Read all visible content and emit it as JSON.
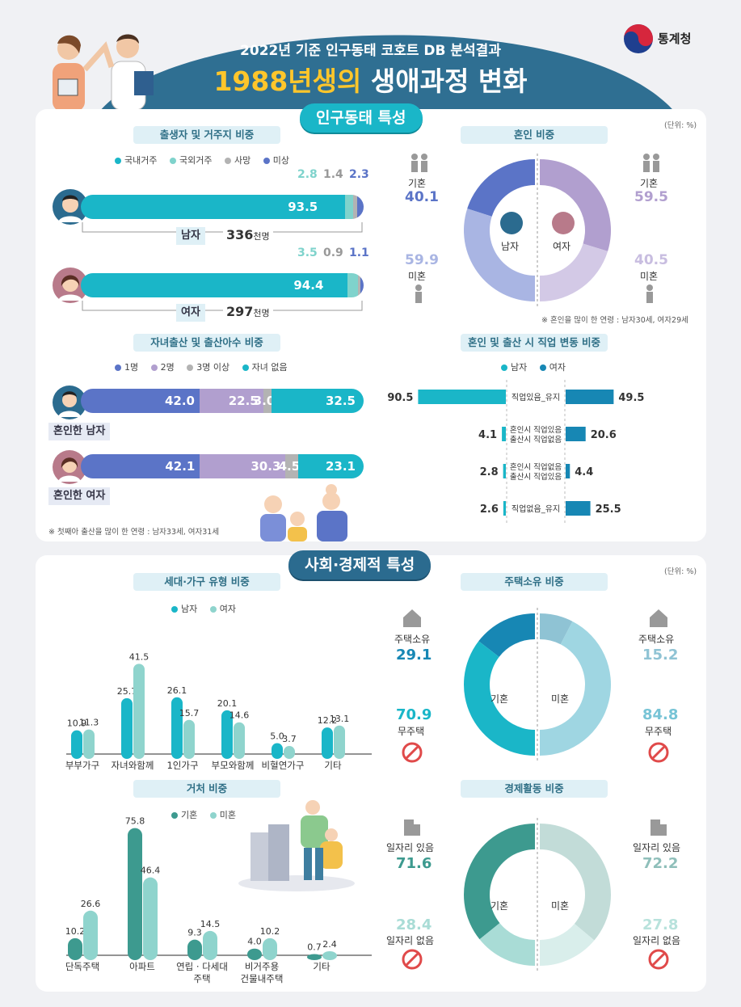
{
  "header": {
    "subtitle": "2022년 기준 인구동태 코호트 DB 분석결과",
    "title_highlight": "1988년생의",
    "title_rest": "생애과정 변화",
    "logo_text": "통계청"
  },
  "sections": {
    "s1": "인구동태 특성",
    "s2": "사회·경제적 특성"
  },
  "units": {
    "u1": "(단위: %)",
    "u2": "(단위: %)"
  },
  "colors": {
    "teal": "#1ab6c8",
    "mint": "#7fd3cc",
    "gray": "#b3b3b3",
    "navy": "#5b74c7",
    "purple": "#b19fcf",
    "darkteal": "#3d9a8f",
    "lightteal": "#8fd4cd",
    "blue": "#1787b4",
    "lightblue": "#9fd6e2"
  },
  "birth": {
    "title": "출생자 및 거주지 비중",
    "legend": [
      "국내거주",
      "국외거주",
      "사망",
      "미상"
    ],
    "male": {
      "label": "남자",
      "count": "336",
      "count_unit": "천명",
      "values": [
        93.5,
        2.8,
        1.4,
        2.3
      ],
      "main_label": "93.5",
      "top_labels": [
        "2.8",
        "1.4",
        "2.3"
      ]
    },
    "female": {
      "label": "여자",
      "count": "297",
      "count_unit": "천명",
      "values": [
        94.4,
        3.5,
        0.9,
        1.1
      ],
      "main_label": "94.4",
      "top_labels": [
        "3.5",
        "0.9",
        "1.1"
      ]
    }
  },
  "marriage": {
    "title": "혼인 비중",
    "male": {
      "label": "남자",
      "married_label": "기혼",
      "married": 40.1,
      "single_label": "미혼",
      "single": 59.9
    },
    "female": {
      "label": "여자",
      "married_label": "기혼",
      "married": 59.5,
      "single_label": "미혼",
      "single": 40.5
    },
    "note": "※ 혼인을 많이 한 연령 : 남자30세, 여자29세"
  },
  "children": {
    "title": "자녀출산 및 출산아수 비중",
    "legend": [
      "1명",
      "2명",
      "3명 이상",
      "자녀 없음"
    ],
    "male": {
      "label": "혼인한 남자",
      "values": [
        42.0,
        22.5,
        3.0,
        32.5
      ],
      "labels": [
        "42.0",
        "22.5",
        "3.0",
        "32.5"
      ]
    },
    "female": {
      "label": "혼인한 여자",
      "values": [
        42.1,
        30.3,
        4.5,
        23.1
      ],
      "labels": [
        "42.1",
        "30.3",
        "4.5",
        "23.1"
      ]
    },
    "note": "※ 첫째아 출산을 많이 한 연령 : 남자33세, 여자31세"
  },
  "job": {
    "title": "혼인 및 출산 시 직업 변동 비중",
    "legend": [
      "남자",
      "여자"
    ],
    "rows": [
      {
        "cat": "직업있음_유지",
        "cat2": "",
        "male": 90.5,
        "female": 49.5
      },
      {
        "cat": "혼인시 직업있음",
        "cat2": "출산시 직업없음",
        "male": 4.1,
        "female": 20.6
      },
      {
        "cat": "혼인시 직업없음",
        "cat2": "출산시 직업있음",
        "male": 2.8,
        "female": 4.4
      },
      {
        "cat": "직업없음_유지",
        "cat2": "",
        "male": 2.6,
        "female": 25.5
      }
    ]
  },
  "chart_data": [
    {
      "type": "bar",
      "title": "세대·가구 유형 비중",
      "categories": [
        "부부가구",
        "자녀와함께",
        "1인가구",
        "부모와함께",
        "비혈연가구",
        "기타"
      ],
      "series": [
        {
          "name": "남자",
          "values": [
            10.9,
            25.7,
            26.1,
            20.1,
            5.0,
            12.2
          ]
        },
        {
          "name": "여자",
          "values": [
            11.3,
            41.5,
            15.7,
            14.6,
            3.7,
            13.1
          ]
        }
      ]
    },
    {
      "type": "bar",
      "title": "거처 비중",
      "categories": [
        "단독주택",
        "아파트",
        "연립 · 다세대 주택",
        "비거주용 건물내주택",
        "기타"
      ],
      "series": [
        {
          "name": "기혼",
          "values": [
            10.2,
            75.8,
            9.3,
            4.0,
            0.7
          ]
        },
        {
          "name": "미혼",
          "values": [
            26.6,
            46.4,
            14.5,
            10.2,
            2.4
          ]
        }
      ]
    },
    {
      "type": "pie",
      "title": "주택소유 비중",
      "groups": [
        {
          "name": "기혼",
          "slices": [
            {
              "name": "주택소유",
              "value": 29.1
            },
            {
              "name": "무주택",
              "value": 70.9
            }
          ]
        },
        {
          "name": "미혼",
          "slices": [
            {
              "name": "주택소유",
              "value": 15.2
            },
            {
              "name": "무주택",
              "value": 84.8
            }
          ]
        }
      ]
    },
    {
      "type": "pie",
      "title": "경제활동 비중",
      "groups": [
        {
          "name": "기혼",
          "slices": [
            {
              "name": "일자리 있음",
              "value": 71.6
            },
            {
              "name": "일자리 없음",
              "value": 28.4
            }
          ]
        },
        {
          "name": "미혼",
          "slices": [
            {
              "name": "일자리 있음",
              "value": 72.2
            },
            {
              "name": "일자리 없음",
              "value": 27.8
            }
          ]
        }
      ]
    }
  ],
  "housing_labels": {
    "own": "주택소유",
    "none": "무주택",
    "married": "기혼",
    "single": "미혼"
  },
  "econ_labels": {
    "yes": "일자리 있음",
    "no": "일자리 없음",
    "married": "기혼",
    "single": "미혼"
  }
}
